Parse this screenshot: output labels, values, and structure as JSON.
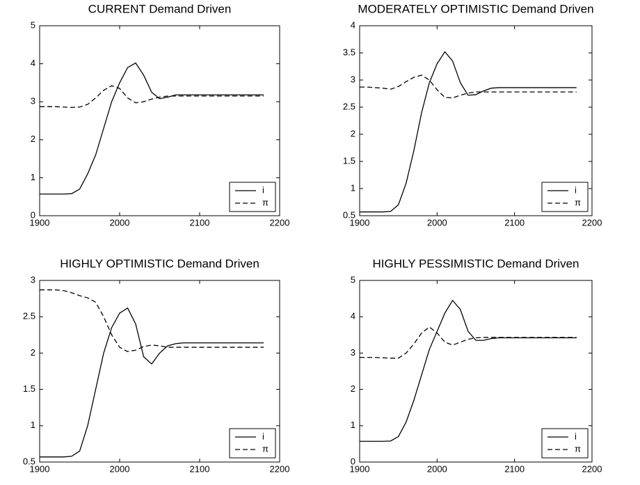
{
  "chart_data": [
    {
      "type": "line",
      "title": "CURRENT Demand Driven",
      "x": [
        1900,
        1910,
        1920,
        1930,
        1940,
        1950,
        1960,
        1970,
        1980,
        1990,
        2000,
        2010,
        2020,
        2030,
        2040,
        2050,
        2060,
        2070,
        2080,
        2090,
        2100,
        2110,
        2120,
        2130,
        2140,
        2150,
        2160,
        2170,
        2180
      ],
      "series": [
        {
          "name": "i",
          "color": "#000000",
          "style": "solid",
          "values": [
            0.57,
            0.57,
            0.57,
            0.57,
            0.58,
            0.7,
            1.1,
            1.6,
            2.3,
            3.0,
            3.5,
            3.9,
            4.02,
            3.7,
            3.25,
            3.08,
            3.12,
            3.18,
            3.18,
            3.18,
            3.18,
            3.18,
            3.18,
            3.18,
            3.18,
            3.18,
            3.18,
            3.18,
            3.18
          ]
        },
        {
          "name": "π",
          "color": "#000000",
          "style": "dashed",
          "values": [
            2.87,
            2.87,
            2.87,
            2.86,
            2.85,
            2.86,
            2.93,
            3.1,
            3.3,
            3.42,
            3.35,
            3.1,
            2.97,
            3.0,
            3.07,
            3.12,
            3.15,
            3.15,
            3.15,
            3.15,
            3.15,
            3.15,
            3.15,
            3.15,
            3.15,
            3.15,
            3.15,
            3.15,
            3.15
          ]
        }
      ],
      "xlim": [
        1900,
        2200
      ],
      "xticks": [
        1900,
        2000,
        2100,
        2200
      ],
      "ylim": [
        0,
        5
      ],
      "yticks": [
        0,
        1,
        2,
        3,
        4,
        5
      ],
      "legend": "lower-right",
      "grid": false
    },
    {
      "type": "line",
      "title": "MODERATELY OPTIMISTIC Demand Driven",
      "x": [
        1900,
        1910,
        1920,
        1930,
        1940,
        1950,
        1960,
        1970,
        1980,
        1990,
        2000,
        2010,
        2020,
        2030,
        2040,
        2050,
        2060,
        2070,
        2080,
        2090,
        2100,
        2110,
        2120,
        2130,
        2140,
        2150,
        2160,
        2170,
        2180
      ],
      "series": [
        {
          "name": "i",
          "color": "#000000",
          "style": "solid",
          "values": [
            0.57,
            0.57,
            0.57,
            0.57,
            0.58,
            0.7,
            1.1,
            1.7,
            2.4,
            2.95,
            3.3,
            3.52,
            3.35,
            2.95,
            2.72,
            2.73,
            2.8,
            2.85,
            2.86,
            2.86,
            2.86,
            2.86,
            2.86,
            2.86,
            2.86,
            2.86,
            2.86,
            2.86,
            2.86
          ]
        },
        {
          "name": "π",
          "color": "#000000",
          "style": "dashed",
          "values": [
            2.87,
            2.87,
            2.86,
            2.85,
            2.83,
            2.88,
            2.97,
            3.05,
            3.09,
            3.0,
            2.82,
            2.68,
            2.67,
            2.72,
            2.76,
            2.78,
            2.78,
            2.78,
            2.78,
            2.78,
            2.78,
            2.78,
            2.78,
            2.78,
            2.78,
            2.78,
            2.78,
            2.78,
            2.78
          ]
        }
      ],
      "xlim": [
        1900,
        2200
      ],
      "xticks": [
        1900,
        2000,
        2100,
        2200
      ],
      "ylim": [
        0.5,
        4
      ],
      "yticks": [
        0.5,
        1,
        1.5,
        2,
        2.5,
        3,
        3.5,
        4
      ],
      "legend": "lower-right",
      "grid": false
    },
    {
      "type": "line",
      "title": "HIGHLY OPTIMISTIC Demand Driven",
      "x": [
        1900,
        1910,
        1920,
        1930,
        1940,
        1950,
        1960,
        1970,
        1980,
        1990,
        2000,
        2010,
        2020,
        2030,
        2040,
        2050,
        2060,
        2070,
        2080,
        2090,
        2100,
        2110,
        2120,
        2130,
        2140,
        2150,
        2160,
        2170,
        2180
      ],
      "series": [
        {
          "name": "i",
          "color": "#000000",
          "style": "solid",
          "values": [
            0.57,
            0.57,
            0.57,
            0.57,
            0.58,
            0.65,
            1.0,
            1.5,
            2.0,
            2.35,
            2.55,
            2.62,
            2.4,
            1.95,
            1.85,
            2.0,
            2.1,
            2.13,
            2.14,
            2.14,
            2.14,
            2.14,
            2.14,
            2.14,
            2.14,
            2.14,
            2.14,
            2.14,
            2.14
          ]
        },
        {
          "name": "π",
          "color": "#000000",
          "style": "dashed",
          "values": [
            2.87,
            2.87,
            2.87,
            2.86,
            2.83,
            2.79,
            2.76,
            2.7,
            2.5,
            2.25,
            2.08,
            2.02,
            2.04,
            2.09,
            2.11,
            2.1,
            2.08,
            2.08,
            2.08,
            2.08,
            2.08,
            2.08,
            2.08,
            2.08,
            2.08,
            2.08,
            2.08,
            2.08,
            2.08
          ]
        }
      ],
      "xlim": [
        1900,
        2200
      ],
      "xticks": [
        1900,
        2000,
        2100,
        2200
      ],
      "ylim": [
        0.5,
        3
      ],
      "yticks": [
        0.5,
        1,
        1.5,
        2,
        2.5,
        3
      ],
      "legend": "lower-right",
      "grid": false
    },
    {
      "type": "line",
      "title": "HIGHLY PESSIMISTIC Demand Driven",
      "x": [
        1900,
        1910,
        1920,
        1930,
        1940,
        1950,
        1960,
        1970,
        1980,
        1990,
        2000,
        2010,
        2020,
        2030,
        2040,
        2050,
        2060,
        2070,
        2080,
        2090,
        2100,
        2110,
        2120,
        2130,
        2140,
        2150,
        2160,
        2170,
        2180
      ],
      "series": [
        {
          "name": "i",
          "color": "#000000",
          "style": "solid",
          "values": [
            0.57,
            0.57,
            0.57,
            0.57,
            0.58,
            0.7,
            1.1,
            1.7,
            2.4,
            3.1,
            3.6,
            4.1,
            4.45,
            4.2,
            3.6,
            3.35,
            3.35,
            3.4,
            3.42,
            3.42,
            3.42,
            3.42,
            3.42,
            3.42,
            3.42,
            3.42,
            3.42,
            3.42,
            3.42
          ]
        },
        {
          "name": "π",
          "color": "#000000",
          "style": "dashed",
          "values": [
            2.88,
            2.88,
            2.88,
            2.87,
            2.86,
            2.86,
            3.0,
            3.25,
            3.55,
            3.72,
            3.55,
            3.3,
            3.22,
            3.3,
            3.38,
            3.42,
            3.43,
            3.43,
            3.43,
            3.43,
            3.43,
            3.43,
            3.43,
            3.43,
            3.43,
            3.43,
            3.43,
            3.43,
            3.43
          ]
        }
      ],
      "xlim": [
        1900,
        2200
      ],
      "xticks": [
        1900,
        2000,
        2100,
        2200
      ],
      "ylim": [
        0,
        5
      ],
      "yticks": [
        0,
        1,
        2,
        3,
        4,
        5
      ],
      "legend": "lower-right",
      "grid": false
    }
  ]
}
